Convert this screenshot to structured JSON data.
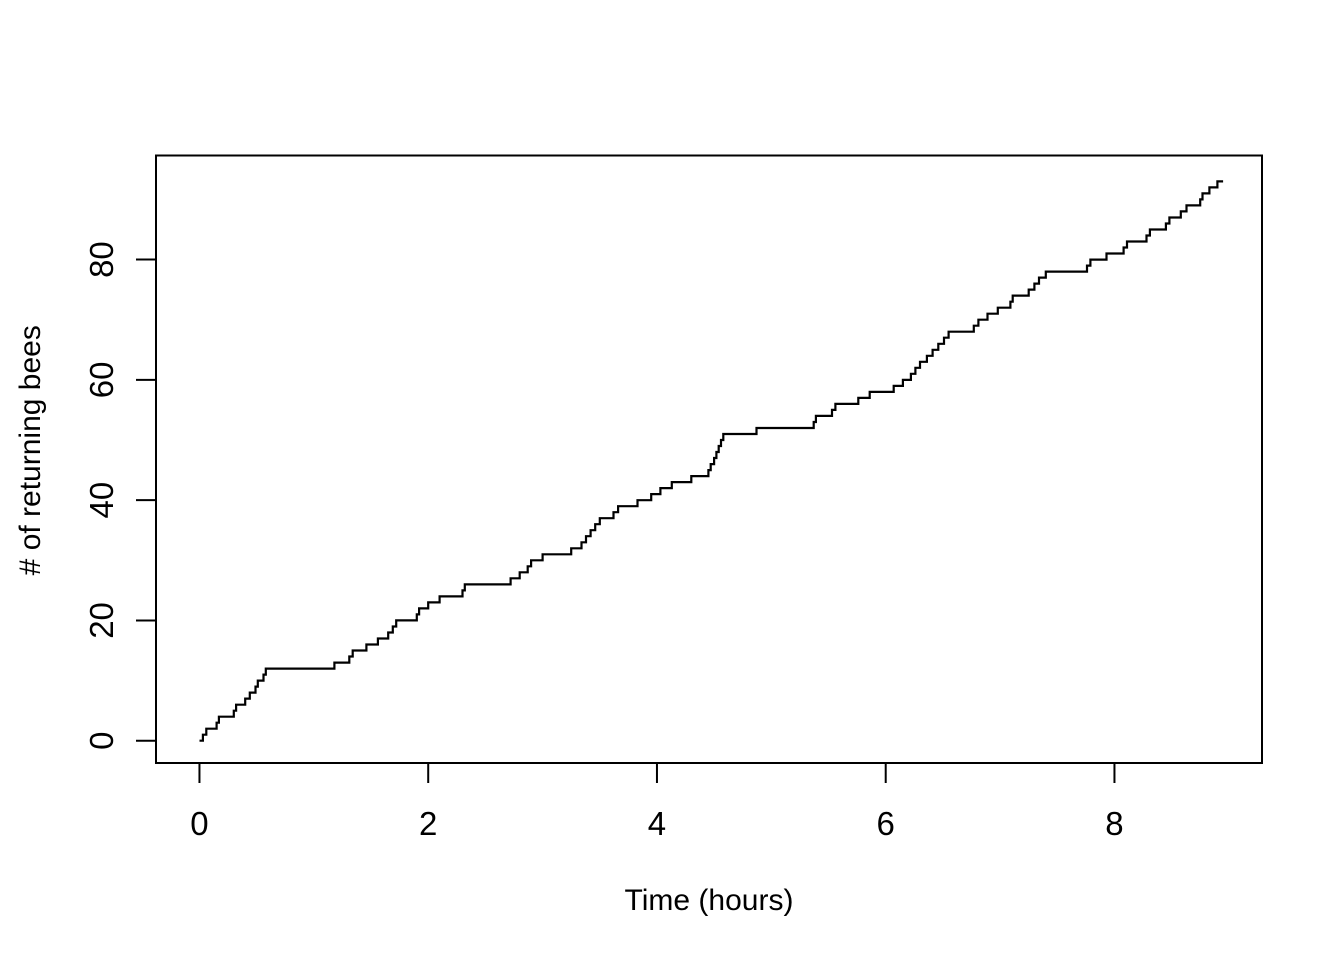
{
  "chart_data": {
    "type": "line",
    "subtype": "step-post",
    "title": "",
    "xlabel": "Time (hours)",
    "ylabel": "# of returning bees",
    "xlim": [
      -0.38,
      9.29
    ],
    "ylim": [
      -3.7,
      97.3
    ],
    "xticks": [
      0,
      2,
      4,
      6,
      8
    ],
    "yticks": [
      0,
      20,
      40,
      60,
      80
    ],
    "grid": false,
    "legend": null,
    "line_color": "#000000",
    "box_color": "#000000",
    "background": "#ffffff",
    "points": [
      [
        0.0,
        0
      ],
      [
        0.03,
        1
      ],
      [
        0.06,
        2
      ],
      [
        0.15,
        3
      ],
      [
        0.17,
        4
      ],
      [
        0.3,
        5
      ],
      [
        0.32,
        6
      ],
      [
        0.4,
        7
      ],
      [
        0.44,
        8
      ],
      [
        0.49,
        9
      ],
      [
        0.51,
        10
      ],
      [
        0.56,
        11
      ],
      [
        0.58,
        12
      ],
      [
        1.18,
        13
      ],
      [
        1.31,
        14
      ],
      [
        1.34,
        15
      ],
      [
        1.46,
        16
      ],
      [
        1.56,
        17
      ],
      [
        1.65,
        18
      ],
      [
        1.69,
        19
      ],
      [
        1.72,
        20
      ],
      [
        1.9,
        21
      ],
      [
        1.92,
        22
      ],
      [
        2.0,
        23
      ],
      [
        2.1,
        24
      ],
      [
        2.3,
        25
      ],
      [
        2.32,
        26
      ],
      [
        2.72,
        27
      ],
      [
        2.8,
        28
      ],
      [
        2.87,
        29
      ],
      [
        2.9,
        30
      ],
      [
        3.0,
        31
      ],
      [
        3.25,
        32
      ],
      [
        3.34,
        33
      ],
      [
        3.38,
        34
      ],
      [
        3.42,
        35
      ],
      [
        3.46,
        36
      ],
      [
        3.5,
        37
      ],
      [
        3.62,
        38
      ],
      [
        3.66,
        39
      ],
      [
        3.83,
        40
      ],
      [
        3.95,
        41
      ],
      [
        4.03,
        42
      ],
      [
        4.13,
        43
      ],
      [
        4.3,
        44
      ],
      [
        4.45,
        45
      ],
      [
        4.47,
        46
      ],
      [
        4.5,
        47
      ],
      [
        4.52,
        48
      ],
      [
        4.54,
        49
      ],
      [
        4.56,
        50
      ],
      [
        4.58,
        51
      ],
      [
        4.87,
        52
      ],
      [
        5.37,
        53
      ],
      [
        5.39,
        54
      ],
      [
        5.53,
        55
      ],
      [
        5.56,
        56
      ],
      [
        5.76,
        57
      ],
      [
        5.86,
        58
      ],
      [
        6.07,
        59
      ],
      [
        6.15,
        60
      ],
      [
        6.22,
        61
      ],
      [
        6.26,
        62
      ],
      [
        6.3,
        63
      ],
      [
        6.36,
        64
      ],
      [
        6.41,
        65
      ],
      [
        6.46,
        66
      ],
      [
        6.51,
        67
      ],
      [
        6.55,
        68
      ],
      [
        6.77,
        69
      ],
      [
        6.81,
        70
      ],
      [
        6.89,
        71
      ],
      [
        6.98,
        72
      ],
      [
        7.09,
        73
      ],
      [
        7.11,
        74
      ],
      [
        7.25,
        75
      ],
      [
        7.3,
        76
      ],
      [
        7.34,
        77
      ],
      [
        7.4,
        78
      ],
      [
        7.76,
        79
      ],
      [
        7.79,
        80
      ],
      [
        7.93,
        81
      ],
      [
        8.08,
        82
      ],
      [
        8.11,
        83
      ],
      [
        8.28,
        84
      ],
      [
        8.31,
        85
      ],
      [
        8.45,
        86
      ],
      [
        8.48,
        87
      ],
      [
        8.58,
        88
      ],
      [
        8.63,
        89
      ],
      [
        8.75,
        90
      ],
      [
        8.77,
        91
      ],
      [
        8.83,
        92
      ],
      [
        8.9,
        93
      ],
      [
        8.95,
        93
      ]
    ]
  }
}
